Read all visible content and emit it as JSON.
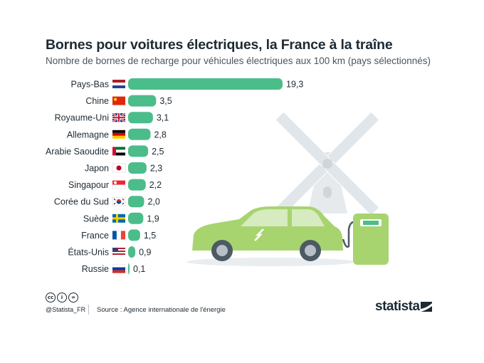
{
  "header": {
    "title": "Bornes pour voitures électriques, la France à la traîne",
    "subtitle": "Nombre de bornes de recharge pour véhicules électriques aux 100 km (pays sélectionnés)"
  },
  "chart_data": {
    "type": "bar",
    "orientation": "horizontal",
    "title": "Bornes pour voitures électriques, la France à la traîne",
    "subtitle": "Nombre de bornes de recharge pour véhicules électriques aux 100 km (pays sélectionnés)",
    "categories": [
      "Pays-Bas",
      "Chine",
      "Royaume-Uni",
      "Allemagne",
      "Arabie Saoudite",
      "Japon",
      "Singapour",
      "Corée du Sud",
      "Suède",
      "France",
      "États-Unis",
      "Russie"
    ],
    "values": [
      19.3,
      3.5,
      3.1,
      2.8,
      2.5,
      2.3,
      2.2,
      2.0,
      1.9,
      1.5,
      0.9,
      0.1
    ],
    "value_labels": [
      "19,3",
      "3,5",
      "3,1",
      "2,8",
      "2,5",
      "2,3",
      "2,2",
      "2,0",
      "1,9",
      "1,5",
      "0,9",
      "0,1"
    ],
    "flags": [
      "flag-netherlands",
      "flag-china",
      "flag-united-kingdom",
      "flag-germany",
      "flag-saudi-arabia",
      "flag-japan",
      "flag-singapore",
      "flag-south-korea",
      "flag-sweden",
      "flag-france",
      "flag-united-states",
      "flag-russia"
    ],
    "xlim": [
      0,
      19.3
    ],
    "grid": false,
    "bar_color": "#4bbd8a"
  },
  "footer": {
    "license_icons": [
      "cc-icon",
      "by-icon",
      "nd-icon"
    ],
    "handle": "@Statista_FR",
    "source": "Source : Agence internationale de l'énergie",
    "brand": "statista"
  },
  "colors": {
    "bar": "#4bbd8a",
    "car": "#a7d46f",
    "windmill": "#e1e6ea",
    "text": "#1d2a33"
  }
}
